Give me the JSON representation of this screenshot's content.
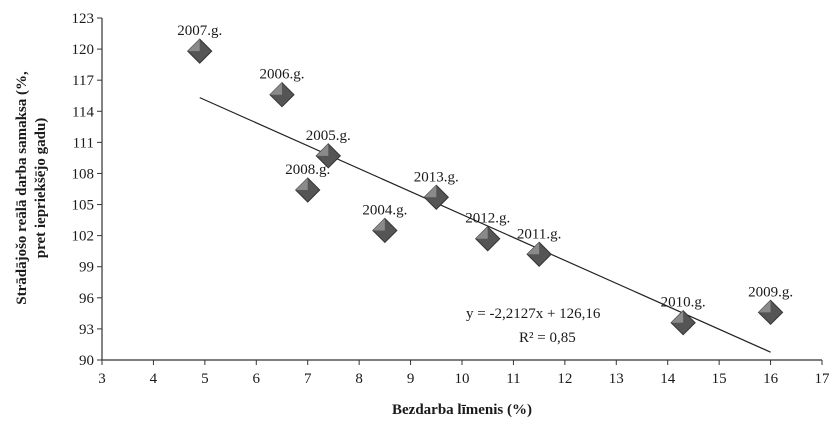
{
  "chart_data": {
    "type": "scatter",
    "xlabel": "Bezdarba līmenis (%)",
    "ylabel_line1": "Strādājošo reālā darba samaksa (%,",
    "ylabel_line2": "pret iepriekšējo gadu)",
    "xlim": [
      3,
      17
    ],
    "ylim": [
      90,
      123
    ],
    "x_ticks": [
      "3",
      "4",
      "5",
      "6",
      "7",
      "8",
      "9",
      "10",
      "11",
      "12",
      "13",
      "14",
      "15",
      "16",
      "17"
    ],
    "y_ticks": [
      "90",
      "93",
      "96",
      "99",
      "102",
      "105",
      "108",
      "111",
      "114",
      "117",
      "120",
      "123"
    ],
    "grid": false,
    "marker_color": "#555555",
    "points": [
      {
        "label": "2007.g.",
        "x": 4.9,
        "y": 119.8
      },
      {
        "label": "2006.g.",
        "x": 6.5,
        "y": 115.6
      },
      {
        "label": "2005.g.",
        "x": 7.4,
        "y": 109.7
      },
      {
        "label": "2008.g.",
        "x": 7.0,
        "y": 106.4
      },
      {
        "label": "2004.g.",
        "x": 8.5,
        "y": 102.5
      },
      {
        "label": "2013.g.",
        "x": 9.5,
        "y": 105.7
      },
      {
        "label": "2012.g.",
        "x": 10.5,
        "y": 101.7
      },
      {
        "label": "2011.g.",
        "x": 11.5,
        "y": 100.2
      },
      {
        "label": "2010.g.",
        "x": 14.3,
        "y": 93.6
      },
      {
        "label": "2009.g.",
        "x": 16.0,
        "y": 94.6
      }
    ],
    "trendline": {
      "type": "linear",
      "slope": -2.2127,
      "intercept": 126.16,
      "x_range": [
        4.9,
        16.0
      ],
      "equation": "y = -2,2127x + 126,16",
      "r2_label": "R² = 0,85"
    }
  }
}
